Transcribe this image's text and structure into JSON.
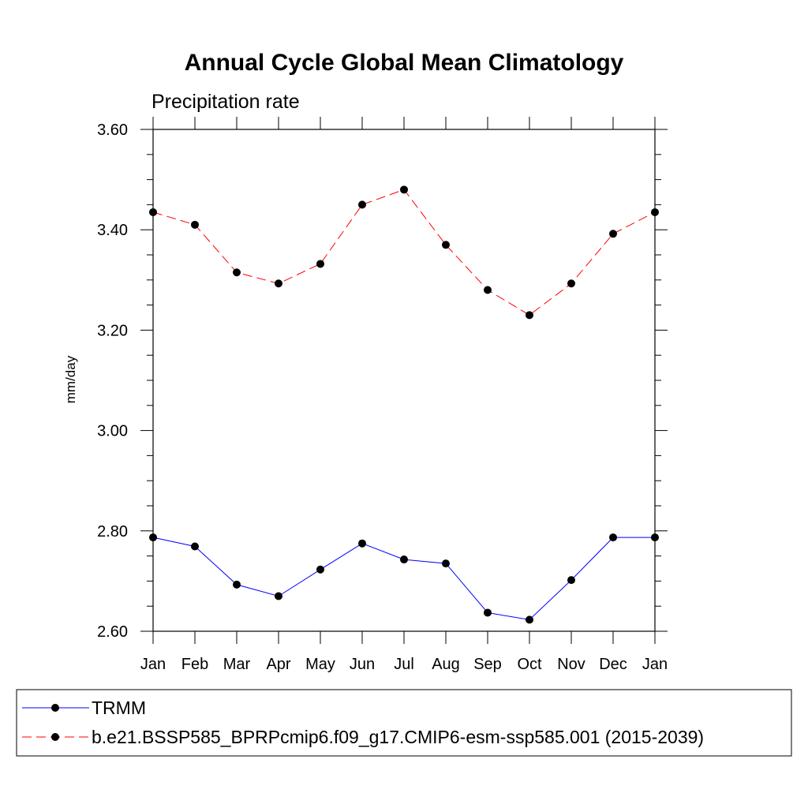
{
  "chart_data": {
    "type": "line",
    "title": "Annual Cycle Global Mean Climatology",
    "subtitle": "Precipitation rate",
    "xlabel": "",
    "ylabel": "mm/day",
    "categories": [
      "Jan",
      "Feb",
      "Mar",
      "Apr",
      "May",
      "Jun",
      "Jul",
      "Aug",
      "Sep",
      "Oct",
      "Nov",
      "Dec",
      "Jan"
    ],
    "ylim": [
      2.6,
      3.6
    ],
    "yticks": [
      "2.60",
      "2.80",
      "3.00",
      "3.20",
      "3.40",
      "3.60"
    ],
    "grid": false,
    "legend_position": "bottom",
    "series": [
      {
        "name": "TRMM",
        "color": "#0000ff",
        "dash": "solid",
        "values": [
          2.787,
          2.769,
          2.693,
          2.67,
          2.723,
          2.775,
          2.743,
          2.735,
          2.637,
          2.623,
          2.702,
          2.787,
          2.787
        ]
      },
      {
        "name": "b.e21.BSSP585_BPRPcmip6.f09_g17.CMIP6-esm-ssp585.001 (2015-2039)",
        "color": "#ff0000",
        "dash": "dashed",
        "values": [
          3.435,
          3.41,
          3.315,
          3.293,
          3.332,
          3.45,
          3.48,
          3.37,
          3.28,
          3.23,
          3.293,
          3.392,
          3.435
        ]
      }
    ]
  }
}
